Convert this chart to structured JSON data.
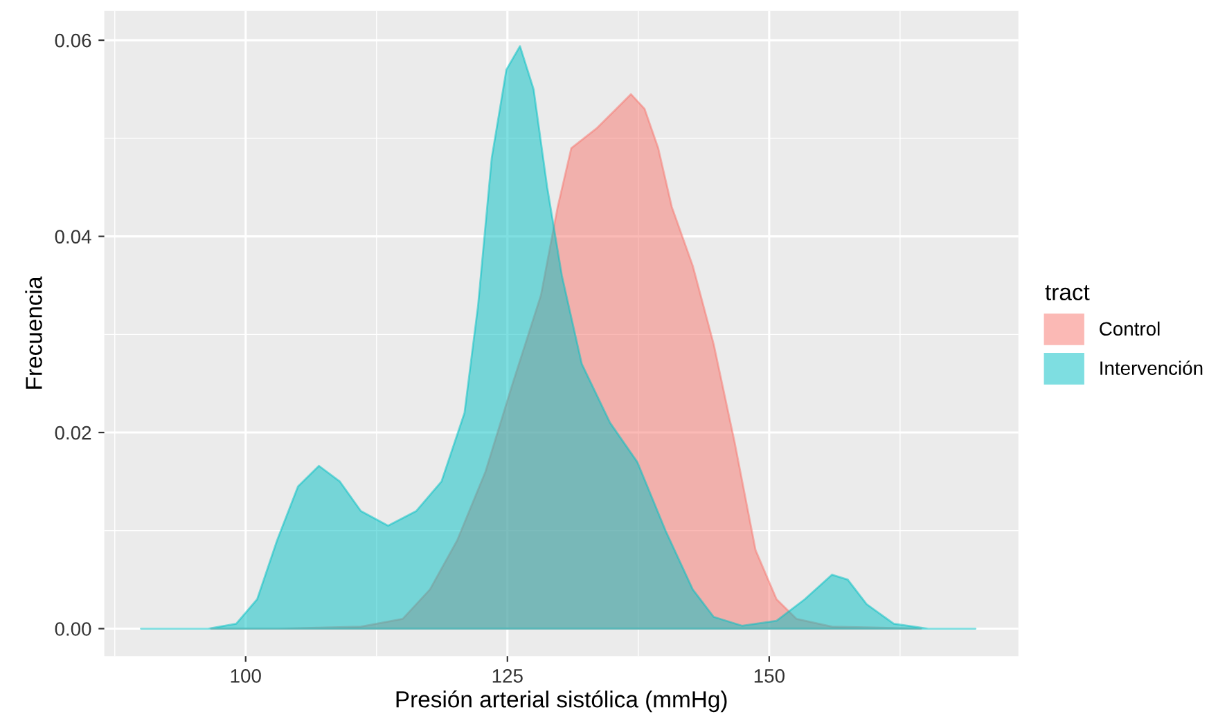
{
  "chart_data": {
    "type": "area",
    "xlabel": "Presión arterial sistólica (mmHg)",
    "ylabel": "Frecuencia",
    "legend_title": "tract",
    "legend": "right",
    "xlim": [
      86.5,
      173.8
    ],
    "ylim": [
      -0.0028,
      0.063
    ],
    "xticks": [
      100,
      125,
      150
    ],
    "yticks": [
      {
        "value": 0,
        "label": "0.00"
      },
      {
        "value": 0.02,
        "label": "0.02"
      },
      {
        "value": 0.04,
        "label": "0.04"
      },
      {
        "value": 0.06,
        "label": "0.06"
      }
    ],
    "grid": true,
    "series": [
      {
        "name": "Control",
        "color": "#f8766d",
        "x": [
          96.7,
          103,
          111,
          115,
          117.6,
          120.2,
          122.9,
          125.5,
          128.2,
          129.8,
          131.1,
          133.5,
          135.4,
          136.8,
          138.1,
          139.4,
          140.7,
          142.7,
          144.7,
          146.7,
          148.7,
          150.7,
          152.6,
          156,
          164.5
        ],
        "values": [
          0,
          0,
          0.0002,
          0.001,
          0.004,
          0.009,
          0.016,
          0.025,
          0.034,
          0.043,
          0.049,
          0.051,
          0.053,
          0.0545,
          0.053,
          0.049,
          0.043,
          0.037,
          0.029,
          0.019,
          0.008,
          0.003,
          0.001,
          0.0002,
          0
        ]
      },
      {
        "name": "Intervención",
        "color": "#00bfc4",
        "x": [
          90,
          96.4,
          99.1,
          101.1,
          103,
          105,
          107,
          109,
          111,
          113.6,
          116.3,
          118.7,
          120.9,
          122.2,
          123.5,
          124.9,
          126.2,
          127.5,
          128.8,
          130.2,
          132.1,
          134.8,
          137.4,
          140.1,
          142.7,
          144.7,
          147.4,
          150.7,
          153.4,
          156,
          157.5,
          159.3,
          161.9,
          165.2,
          169.7
        ],
        "values": [
          0,
          0,
          0.0005,
          0.003,
          0.009,
          0.0145,
          0.0166,
          0.015,
          0.012,
          0.0105,
          0.012,
          0.015,
          0.022,
          0.033,
          0.048,
          0.057,
          0.0594,
          0.055,
          0.045,
          0.036,
          0.027,
          0.021,
          0.017,
          0.01,
          0.004,
          0.0012,
          0.0003,
          0.0008,
          0.003,
          0.0055,
          0.005,
          0.0025,
          0.0005,
          0,
          0
        ]
      }
    ]
  }
}
